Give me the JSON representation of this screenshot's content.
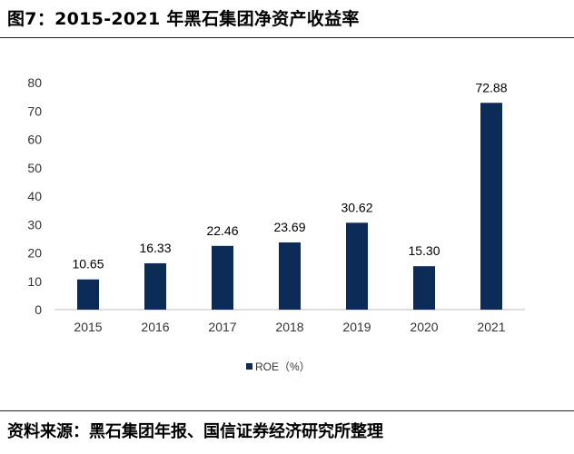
{
  "figure": {
    "title": "图7：2015-2021 年黑石集团净资产收益率",
    "source": "资料来源：黑石集团年报、国信证券经济研究所整理"
  },
  "colors": {
    "bar": "#0d2b57",
    "axis": "#bfbfbf",
    "text": "#333333"
  },
  "chart_data": {
    "type": "bar",
    "categories": [
      "2015",
      "2016",
      "2017",
      "2018",
      "2019",
      "2020",
      "2021"
    ],
    "series": [
      {
        "name": "ROE（%）",
        "values": [
          10.65,
          16.33,
          22.46,
          23.69,
          30.62,
          15.3,
          72.88
        ]
      }
    ],
    "data_labels": [
      "10.65",
      "16.33",
      "22.46",
      "23.69",
      "30.62",
      "15.30",
      "72.88"
    ],
    "ylim": [
      0,
      80
    ],
    "yticks": [
      0,
      10,
      20,
      30,
      40,
      50,
      60,
      70,
      80
    ],
    "grid": false,
    "legend": "bottom-center"
  }
}
